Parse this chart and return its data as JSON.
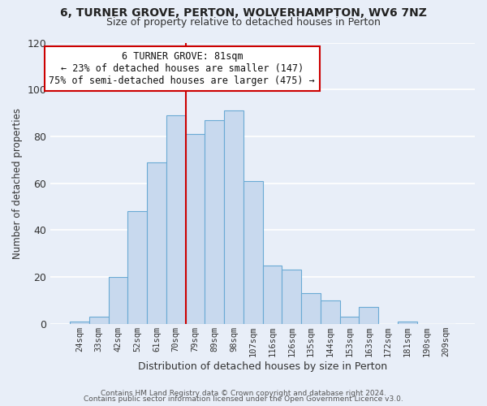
{
  "title": "6, TURNER GROVE, PERTON, WOLVERHAMPTON, WV6 7NZ",
  "subtitle": "Size of property relative to detached houses in Perton",
  "xlabel": "Distribution of detached houses by size in Perton",
  "ylabel": "Number of detached properties",
  "categories": [
    "24sqm",
    "33sqm",
    "42sqm",
    "52sqm",
    "61sqm",
    "70sqm",
    "79sqm",
    "89sqm",
    "98sqm",
    "107sqm",
    "116sqm",
    "126sqm",
    "135sqm",
    "144sqm",
    "153sqm",
    "163sqm",
    "172sqm",
    "181sqm",
    "190sqm",
    "209sqm"
  ],
  "values": [
    1,
    3,
    20,
    48,
    69,
    89,
    81,
    87,
    91,
    61,
    25,
    23,
    13,
    10,
    3,
    7,
    0,
    1,
    0,
    0
  ],
  "bar_color": "#c8d9ee",
  "bar_edge_color": "#6aaad4",
  "highlight_index": 6,
  "highlight_line_color": "#cc0000",
  "ylim": [
    0,
    120
  ],
  "yticks": [
    0,
    20,
    40,
    60,
    80,
    100,
    120
  ],
  "annotation_title": "6 TURNER GROVE: 81sqm",
  "annotation_line1": "← 23% of detached houses are smaller (147)",
  "annotation_line2": "75% of semi-detached houses are larger (475) →",
  "annotation_box_color": "#ffffff",
  "annotation_box_edge": "#cc0000",
  "footer1": "Contains HM Land Registry data © Crown copyright and database right 2024.",
  "footer2": "Contains public sector information licensed under the Open Government Licence v3.0.",
  "background_color": "#e8eef8",
  "grid_color": "#ffffff",
  "plot_bg_color": "#e8eef8"
}
